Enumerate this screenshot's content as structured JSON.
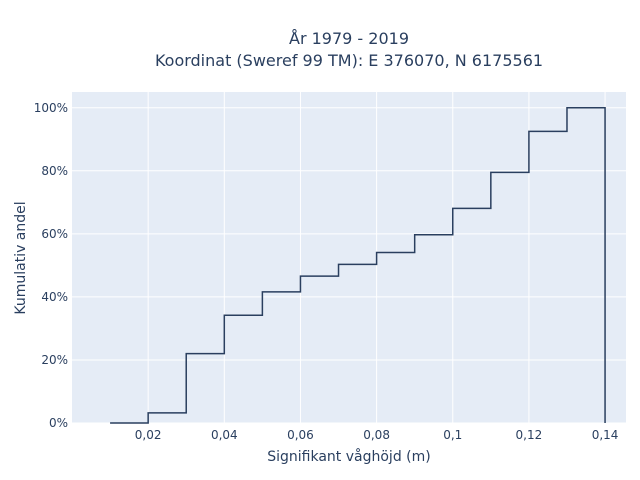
{
  "chart_data": {
    "type": "line",
    "line_shape": "step",
    "title": "År 1979 - 2019",
    "subtitle": "Koordinat (Sweref 99 TM): E 376070, N 6175561",
    "xlabel": "Signifikant våghöjd (m)",
    "ylabel": "Kumulativ andel",
    "xlim": [
      0.0,
      0.1455
    ],
    "ylim": [
      0,
      1.05
    ],
    "x_ticks": [
      0.02,
      0.04,
      0.06,
      0.08,
      0.1,
      0.12,
      0.14
    ],
    "x_tick_labels": [
      "0,02",
      "0,04",
      "0,06",
      "0,08",
      "0,1",
      "0,12",
      "0,14"
    ],
    "y_ticks": [
      0,
      0.2,
      0.4,
      0.6,
      0.8,
      1.0
    ],
    "y_tick_labels": [
      "0%",
      "20%",
      "40%",
      "60%",
      "80%",
      "100%"
    ],
    "grid": true,
    "colors": {
      "plot_bg": "#e5ecf6",
      "grid": "#ffffff",
      "line": "#2a3f5f",
      "text": "#2a3f5f"
    },
    "series": [
      {
        "x": [
          0.01,
          0.02,
          0.03,
          0.04,
          0.05,
          0.06,
          0.07,
          0.08,
          0.09,
          0.1,
          0.11,
          0.12,
          0.13,
          0.14
        ],
        "y": [
          0.0,
          0.032,
          0.22,
          0.342,
          0.416,
          0.466,
          0.503,
          0.541,
          0.597,
          0.681,
          0.795,
          0.925,
          1.0,
          0.0
        ]
      }
    ]
  }
}
